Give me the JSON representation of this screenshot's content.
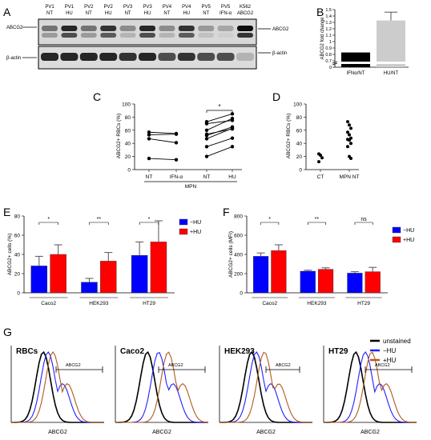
{
  "panel_letters": [
    "A",
    "B",
    "C",
    "D",
    "E",
    "F",
    "G"
  ],
  "panel_a": {
    "lanes": [
      {
        "top": "PV1",
        "bottom": "NT"
      },
      {
        "top": "PV1",
        "bottom": "HU"
      },
      {
        "top": "PV2",
        "bottom": "NT"
      },
      {
        "top": "PV2",
        "bottom": "HU"
      },
      {
        "top": "PV3",
        "bottom": "NT"
      },
      {
        "top": "PV3",
        "bottom": "HU"
      },
      {
        "top": "PV4",
        "bottom": "NT"
      },
      {
        "top": "PV4",
        "bottom": "HU"
      },
      {
        "top": "PV5",
        "bottom": "NT"
      },
      {
        "top": "PV5",
        "bottom": "IFN-α"
      },
      {
        "top": "K562",
        "bottom": "ABCG2"
      }
    ],
    "left_labels": [
      "ABCG2",
      "β-actin"
    ],
    "right_labels": [
      "ABCG2",
      "β-actin"
    ],
    "abcg2_intensity": [
      0.55,
      0.85,
      0.55,
      0.8,
      0.45,
      0.85,
      0.45,
      0.8,
      0.4,
      0.35,
      0.95
    ],
    "actin_intensity": [
      0.85,
      0.85,
      0.85,
      0.85,
      0.8,
      0.85,
      0.7,
      0.8,
      0.7,
      0.7,
      0.3
    ]
  },
  "chart_data": [
    {
      "panel": "B",
      "type": "bar",
      "categories": [
        "IFNα/NT",
        "HU/NT"
      ],
      "values": [
        0.83,
        1.33
      ],
      "errors": [
        0,
        0.13
      ],
      "colors": [
        "#000000",
        "#cccccc"
      ],
      "ylabel": "ABCG2 fold change",
      "yticks": [
        "0",
        "0.7",
        "0.8",
        "0.9",
        "1",
        "1.1",
        "1.2",
        "1.3",
        "1.4",
        "1.5"
      ],
      "axis_break": true,
      "ylim": [
        0.7,
        1.5
      ]
    },
    {
      "panel": "C",
      "type": "scatter",
      "ylabel": "ABCG2+ RBCs (%)",
      "xticks": [
        "NT",
        "IFN-α",
        "NT",
        "HU"
      ],
      "group_label": "MPN",
      "yticks": [
        "0",
        "20",
        "40",
        "60",
        "80",
        "100"
      ],
      "ylim": [
        0,
        100
      ],
      "pairs_ifn": [
        [
          57,
          55
        ],
        [
          53,
          54
        ],
        [
          47,
          41
        ],
        [
          17,
          15
        ]
      ],
      "pairs_hu": [
        [
          73,
          85
        ],
        [
          70,
          75
        ],
        [
          60,
          78
        ],
        [
          54,
          62
        ],
        [
          52,
          65
        ],
        [
          47,
          63
        ],
        [
          35,
          48
        ],
        [
          20,
          35
        ]
      ],
      "significance": "*"
    },
    {
      "panel": "D",
      "type": "scatter",
      "ylabel": "ABCG2+ RBCs (%)",
      "xticks": [
        "CT",
        "MPN NT"
      ],
      "yticks": [
        "0",
        "20",
        "40",
        "60",
        "80",
        "100"
      ],
      "ylim": [
        0,
        100
      ],
      "groups": [
        {
          "name": "CT",
          "values": [
            24,
            22,
            18,
            12
          ]
        },
        {
          "name": "MPN NT",
          "values": [
            73,
            68,
            63,
            57,
            53,
            48,
            46,
            45,
            40,
            35,
            20,
            17
          ]
        }
      ]
    },
    {
      "panel": "E",
      "type": "bar",
      "ylabel": "ABCG2+ cells (%)",
      "categories": [
        "Caco2",
        "HEK293",
        "HT29"
      ],
      "series": [
        {
          "name": "−HU",
          "color": "#0000ff",
          "values": [
            28,
            11,
            39
          ],
          "errors": [
            10,
            4,
            14
          ]
        },
        {
          "name": "+HU",
          "color": "#ff0000",
          "values": [
            40,
            33,
            53
          ],
          "errors": [
            10,
            9,
            22
          ]
        }
      ],
      "yticks": [
        "0",
        "20",
        "40",
        "60",
        "80"
      ],
      "ylim": [
        0,
        80
      ],
      "significance": [
        "*",
        "**",
        "*"
      ]
    },
    {
      "panel": "F",
      "type": "bar",
      "ylabel": "ABCG2+ cells (MFI)",
      "categories": [
        "Caco2",
        "HEK293",
        "HT29"
      ],
      "series": [
        {
          "name": "−HU",
          "color": "#0000ff",
          "values": [
            380,
            225,
            205
          ],
          "errors": [
            35,
            10,
            15
          ]
        },
        {
          "name": "+HU",
          "color": "#ff0000",
          "values": [
            440,
            245,
            220
          ],
          "errors": [
            60,
            15,
            45
          ]
        }
      ],
      "yticks": [
        "0",
        "200",
        "400",
        "600",
        "800"
      ],
      "ylim": [
        0,
        800
      ],
      "significance": [
        "*",
        "**",
        "ns"
      ]
    },
    {
      "panel": "G",
      "type": "line",
      "titles": [
        "RBCs",
        "Caco2",
        "HEK293",
        "HT29"
      ],
      "xlabel": "ABCG2",
      "gate_label": "ABCG2",
      "legend": [
        "unstained",
        "−HU",
        "+HU"
      ],
      "colors": [
        "#000000",
        "#2020ff",
        "#b05a20"
      ]
    }
  ]
}
